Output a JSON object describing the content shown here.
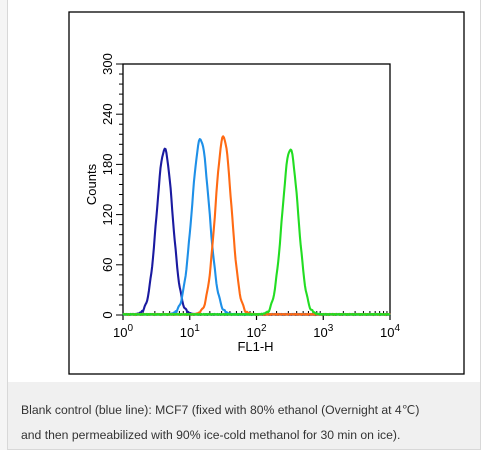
{
  "chart_data": {
    "type": "line",
    "title": "",
    "xlabel": "FL1-H",
    "ylabel": "Counts",
    "xscale": "log",
    "xlim": [
      1,
      10000
    ],
    "ylim": [
      0,
      300
    ],
    "xticks": [
      {
        "base": "10",
        "exp": "0",
        "value": 1
      },
      {
        "base": "10",
        "exp": "1",
        "value": 10
      },
      {
        "base": "10",
        "exp": "2",
        "value": 100
      },
      {
        "base": "10",
        "exp": "3",
        "value": 1000
      },
      {
        "base": "10",
        "exp": "4",
        "value": 10000
      }
    ],
    "yticks": [
      "0",
      "60",
      "120",
      "180",
      "240",
      "300"
    ],
    "grid": false,
    "legend": "none",
    "series": [
      {
        "color": "#1a1aa0",
        "peak_x": 4.2,
        "peak_y": 198,
        "width_log": 0.12
      },
      {
        "color": "#1e90e8",
        "peak_x": 14.5,
        "peak_y": 210,
        "width_log": 0.13
      },
      {
        "color": "#ff6a13",
        "peak_x": 32,
        "peak_y": 213,
        "width_log": 0.12
      },
      {
        "color": "#22dd22",
        "peak_x": 320,
        "peak_y": 198,
        "width_log": 0.12
      }
    ]
  },
  "caption": {
    "line1": "Blank control (blue line): MCF7 (fixed with 80% ethanol (Overnight at 4℃)",
    "line2": "and then permeabilized with 90% ice-cold methanol for 30 min on ice)."
  }
}
